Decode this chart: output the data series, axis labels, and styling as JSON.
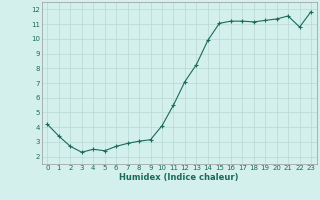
{
  "title": "",
  "xlabel": "Humidex (Indice chaleur)",
  "ylabel": "",
  "x": [
    0,
    1,
    2,
    3,
    4,
    5,
    6,
    7,
    8,
    9,
    10,
    11,
    12,
    13,
    14,
    15,
    16,
    17,
    18,
    19,
    20,
    21,
    22,
    23
  ],
  "y": [
    4.2,
    3.4,
    2.7,
    2.3,
    2.5,
    2.4,
    2.7,
    2.9,
    3.05,
    3.15,
    4.1,
    5.5,
    7.1,
    8.25,
    9.9,
    11.05,
    11.2,
    11.2,
    11.15,
    11.25,
    11.35,
    11.55,
    10.8,
    11.85
  ],
  "xlim": [
    -0.5,
    23.5
  ],
  "ylim": [
    1.5,
    12.5
  ],
  "yticks": [
    2,
    3,
    4,
    5,
    6,
    7,
    8,
    9,
    10,
    11,
    12
  ],
  "xticks": [
    0,
    1,
    2,
    3,
    4,
    5,
    6,
    7,
    8,
    9,
    10,
    11,
    12,
    13,
    14,
    15,
    16,
    17,
    18,
    19,
    20,
    21,
    22,
    23
  ],
  "line_color": "#1a6b5a",
  "marker_color": "#1a6b5a",
  "bg_color": "#d4f0ec",
  "grid_color": "#b8d8d2",
  "spine_color": "#999999",
  "tick_label_color": "#1a6b5a",
  "xlabel_color": "#1a6b5a",
  "xlabel_fontsize": 6.0,
  "ytick_fontsize": 5.5,
  "xtick_fontsize": 5.0
}
